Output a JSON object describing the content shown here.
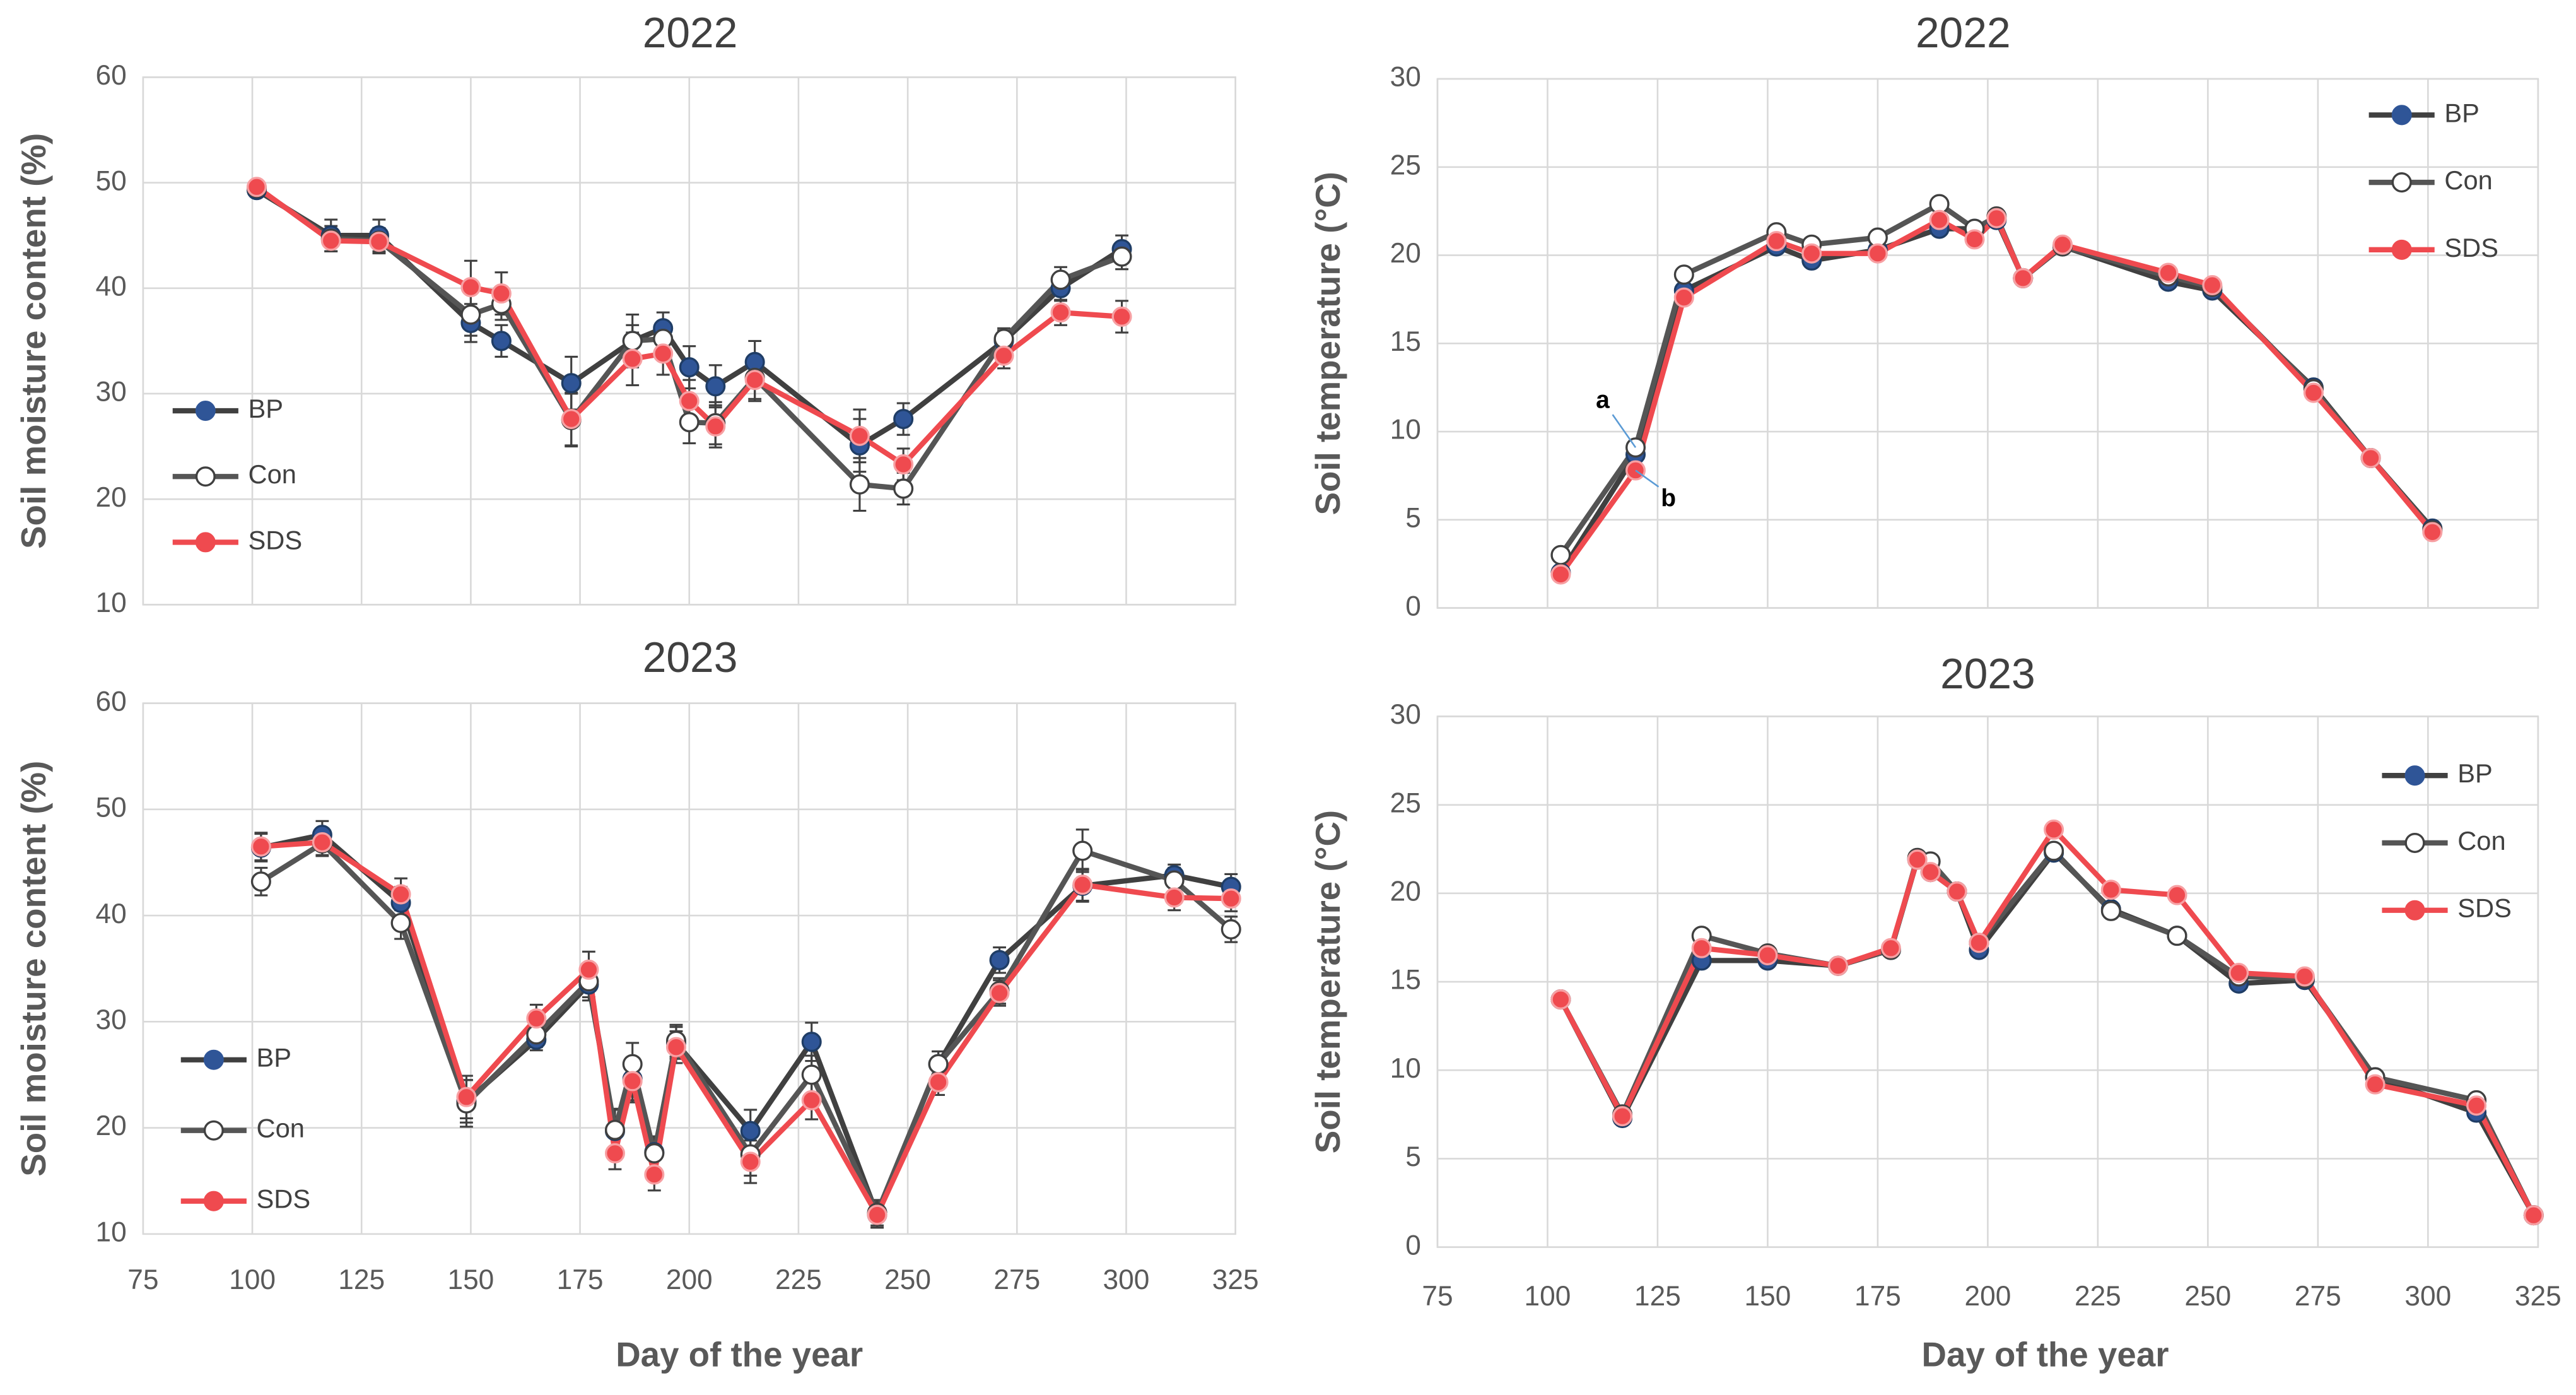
{
  "chart_data": [
    {
      "type": "line",
      "title": "2022",
      "y_label": "Soil moisture content (%)",
      "xlim": [
        75,
        325
      ],
      "xticks": [
        75,
        100,
        125,
        150,
        175,
        200,
        225,
        250,
        275,
        300,
        325
      ],
      "xtick_labels": false,
      "ylim": [
        10,
        60
      ],
      "yticks": [
        10,
        20,
        30,
        40,
        50,
        60
      ],
      "grid": true,
      "legend": "left",
      "x": [
        101,
        118,
        129,
        150,
        157,
        173,
        187,
        194,
        200,
        206,
        215,
        239,
        249,
        272,
        285,
        299
      ],
      "series": [
        {
          "name": "BP",
          "color": "#404040",
          "marker": "#2f5597",
          "values": [
            49.3,
            45,
            45,
            36.7,
            35,
            31,
            35,
            36.2,
            32.5,
            30.7,
            33,
            25.1,
            27.6,
            35,
            40,
            43.7
          ],
          "errors": [
            0.5,
            1.5,
            1.5,
            1.8,
            1.5,
            2.5,
            1.5,
            1.5,
            2,
            2,
            2,
            2.5,
            1.5,
            1,
            1.2,
            1.3
          ]
        },
        {
          "name": "Con",
          "color": "#555555",
          "marker": "#ffffff",
          "values": [
            49.5,
            44.7,
            44.5,
            37.5,
            38.5,
            27.5,
            35,
            35.2,
            27.3,
            27.2,
            31.5,
            21.4,
            21,
            35.2,
            40.8,
            43
          ],
          "errors": [
            0.5,
            1.2,
            1.2,
            2,
            1.5,
            2.5,
            2.5,
            1.5,
            2,
            2,
            2,
            2.5,
            1.5,
            1,
            1.2,
            1.2
          ]
        },
        {
          "name": "SDS",
          "color": "#ef4a4f",
          "marker": "#ef4a4f",
          "values": [
            49.6,
            44.5,
            44.4,
            40.1,
            39.5,
            27.6,
            33.3,
            33.8,
            29.3,
            26.9,
            31.3,
            26,
            23.3,
            33.6,
            37.7,
            37.3
          ],
          "errors": [
            0.5,
            1,
            1,
            2.5,
            2,
            2.5,
            2.5,
            2,
            2,
            2,
            2,
            2.5,
            1.5,
            1.2,
            1.2,
            1.5
          ]
        }
      ]
    },
    {
      "type": "line",
      "title": "2022",
      "y_label": "Soil temperature  (°C)",
      "xlim": [
        75,
        325
      ],
      "xticks": [
        75,
        100,
        125,
        150,
        175,
        200,
        225,
        250,
        275,
        300,
        325
      ],
      "xtick_labels": false,
      "ylim": [
        0,
        30
      ],
      "yticks": [
        0,
        5,
        10,
        15,
        20,
        25,
        30
      ],
      "grid": true,
      "legend": "top-right",
      "x": [
        103,
        120,
        131,
        152,
        160,
        175,
        189,
        197,
        202,
        208,
        217,
        241,
        251,
        274,
        287,
        301
      ],
      "annotations": [
        "a",
        "b"
      ],
      "series": [
        {
          "name": "BP",
          "color": "#404040",
          "marker": "#2f5597",
          "values": [
            2,
            8.7,
            18,
            20.5,
            19.7,
            20.3,
            21.5,
            21.5,
            22,
            18.7,
            20.5,
            18.5,
            18,
            12.5,
            8.5,
            4.5
          ]
        },
        {
          "name": "Con",
          "color": "#555555",
          "marker": "#ffffff",
          "values": [
            3,
            9.1,
            18.9,
            21.3,
            20.6,
            21,
            22.9,
            21.5,
            22.2,
            18.7,
            20.5,
            18.8,
            18.2,
            12.4,
            8.5,
            4.4
          ]
        },
        {
          "name": "SDS",
          "color": "#ef4a4f",
          "marker": "#ef4a4f",
          "values": [
            1.9,
            7.8,
            17.6,
            20.8,
            20.1,
            20.1,
            22,
            20.9,
            22.1,
            18.7,
            20.6,
            19,
            18.3,
            12.2,
            8.5,
            4.3
          ]
        }
      ]
    },
    {
      "type": "line",
      "title": "2023",
      "y_label": "Soil moisture content (%)",
      "x_label": "Day of the year",
      "xlim": [
        75,
        325
      ],
      "xticks": [
        75,
        100,
        125,
        150,
        175,
        200,
        225,
        250,
        275,
        300,
        325
      ],
      "xtick_labels": true,
      "ylim": [
        10,
        60
      ],
      "yticks": [
        10,
        20,
        30,
        40,
        50,
        60
      ],
      "grid": true,
      "legend": "left",
      "x": [
        102,
        116,
        134,
        149,
        165,
        177,
        183,
        187,
        192,
        197,
        214,
        228,
        243,
        257,
        271,
        290,
        311,
        324
      ],
      "series": [
        {
          "name": "BP",
          "color": "#404040",
          "marker": "#2f5597",
          "values": [
            46.4,
            47.6,
            41.2,
            22.5,
            28.3,
            33.5,
            19.7,
            24.6,
            17.7,
            28,
            19.7,
            28.1,
            11.8,
            26,
            35.8,
            42.8,
            43.8,
            42.7
          ],
          "errors": [
            1.3,
            1.3,
            1.5,
            2,
            1,
            1.5,
            2,
            2,
            1.5,
            1.5,
            2,
            1.8,
            1.2,
            1.2,
            1.2,
            1.5,
            1,
            1.2
          ]
        },
        {
          "name": "Con",
          "color": "#555555",
          "marker": "#ffffff",
          "values": [
            43.2,
            46.8,
            39.3,
            22.3,
            28.8,
            33.8,
            19.8,
            26,
            17.6,
            28.2,
            17.5,
            25,
            12,
            26,
            32.9,
            46.1,
            43.3,
            38.7
          ],
          "errors": [
            1.3,
            1.2,
            1.5,
            2.2,
            1.2,
            1.5,
            2,
            2,
            1.5,
            1.5,
            2,
            1.8,
            1.2,
            1.2,
            1.2,
            2,
            1.2,
            1.2
          ]
        },
        {
          "name": "SDS",
          "color": "#ef4a4f",
          "marker": "#ef4a4f",
          "values": [
            46.5,
            46.9,
            42,
            22.9,
            30.3,
            34.9,
            17.6,
            24.4,
            15.6,
            27.6,
            16.8,
            22.6,
            11.8,
            24.3,
            32.7,
            42.9,
            41.7,
            41.6
          ],
          "errors": [
            1.3,
            1.2,
            1.5,
            2,
            1.3,
            1.7,
            1.5,
            2,
            1.5,
            1.5,
            2,
            1.8,
            1.2,
            1.2,
            1.2,
            1.5,
            1.2,
            1.2
          ]
        }
      ]
    },
    {
      "type": "line",
      "title": "2023",
      "y_label": "Soil temperature  (°C)",
      "x_label": "Day of the year",
      "xlim": [
        75,
        325
      ],
      "xticks": [
        75,
        100,
        125,
        150,
        175,
        200,
        225,
        250,
        275,
        300,
        325
      ],
      "xtick_labels": true,
      "ylim": [
        0,
        30
      ],
      "yticks": [
        0,
        5,
        10,
        15,
        20,
        25,
        30
      ],
      "grid": true,
      "legend": "top-right",
      "x": [
        103,
        117,
        135,
        150,
        166,
        178,
        184,
        187,
        193,
        198,
        215,
        228,
        243,
        257,
        272,
        288,
        311,
        324
      ],
      "series": [
        {
          "name": "BP",
          "color": "#404040",
          "marker": "#2f5597",
          "values": [
            14,
            7.3,
            16.2,
            16.2,
            15.9,
            16.8,
            21.9,
            21.2,
            20.1,
            16.8,
            22.3,
            19.1,
            17.6,
            14.9,
            15.1,
            9.6,
            7.6,
            1.8
          ]
        },
        {
          "name": "Con",
          "color": "#555555",
          "marker": "#ffffff",
          "values": [
            14,
            7.5,
            17.6,
            16.6,
            15.9,
            16.8,
            22,
            21.8,
            20.1,
            17.2,
            22.4,
            19,
            17.6,
            15.3,
            15.2,
            9.6,
            8.3,
            1.8
          ]
        },
        {
          "name": "SDS",
          "color": "#ef4a4f",
          "marker": "#ef4a4f",
          "values": [
            14,
            7.4,
            16.9,
            16.5,
            15.9,
            16.9,
            21.9,
            21.2,
            20.1,
            17.2,
            23.6,
            20.2,
            19.9,
            15.5,
            15.3,
            9.2,
            8,
            1.8
          ]
        }
      ]
    }
  ]
}
